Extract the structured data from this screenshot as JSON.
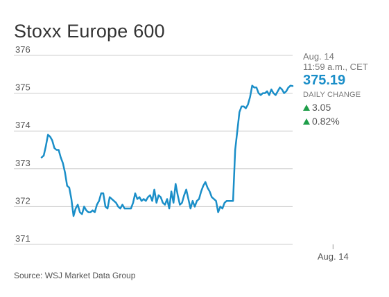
{
  "header": {
    "title": "Stoxx Europe 600"
  },
  "panel": {
    "date": "Aug. 14",
    "time": "11:59 a.m., CET",
    "price": "375.19",
    "daily_change_label": "DAILY CHANGE",
    "change_points": "3.05",
    "change_percent": "0.82%"
  },
  "footer": {
    "source": "Source: WSJ Market Data Group"
  },
  "colors": {
    "line": "#1a8ec8",
    "up": "#1f9e4a",
    "grid": "#cccccc"
  },
  "chart_data": {
    "type": "line",
    "title": "Stoxx Europe 600",
    "xlabel": "",
    "ylabel": "",
    "ylim": [
      371,
      376
    ],
    "yticks": [
      371,
      372,
      373,
      374,
      375,
      376
    ],
    "x_tick_labels": [
      {
        "label": "Aug. 14",
        "index": 137
      }
    ],
    "grid": true,
    "series": [
      {
        "values": [
          373.3,
          373.35,
          373.6,
          373.9,
          373.85,
          373.75,
          373.55,
          373.5,
          373.5,
          373.3,
          373.15,
          372.9,
          372.55,
          372.5,
          372.2,
          371.75,
          371.95,
          372.05,
          371.85,
          371.8,
          372.0,
          371.9,
          371.85,
          371.85,
          371.9,
          371.85,
          372.05,
          372.15,
          372.35,
          372.35,
          372.0,
          371.95,
          372.25,
          372.2,
          372.15,
          372.1,
          372.0,
          371.95,
          372.05,
          371.95,
          371.95,
          371.95,
          371.95,
          372.1,
          372.35,
          372.2,
          372.25,
          372.15,
          372.2,
          372.15,
          372.25,
          372.3,
          372.15,
          372.45,
          372.1,
          372.3,
          372.25,
          372.1,
          372.05,
          372.2,
          371.95,
          372.4,
          372.1,
          372.6,
          372.3,
          372.05,
          372.1,
          372.3,
          372.45,
          372.2,
          371.95,
          372.15,
          372.0,
          372.15,
          372.2,
          372.4,
          372.55,
          372.65,
          372.5,
          372.4,
          372.25,
          372.2,
          372.15,
          371.85,
          372.0,
          371.95,
          372.1,
          372.15,
          372.15,
          372.15,
          372.15,
          373.5,
          374.0,
          374.5,
          374.65,
          374.65,
          374.6,
          374.7,
          374.9,
          375.2,
          375.15,
          375.15,
          375.0,
          374.95,
          375.0,
          375.0,
          375.05,
          374.95,
          375.1,
          375.0,
          374.95,
          375.05,
          375.15,
          375.1,
          375.0,
          375.05,
          375.15,
          375.2,
          375.19
        ]
      }
    ]
  }
}
